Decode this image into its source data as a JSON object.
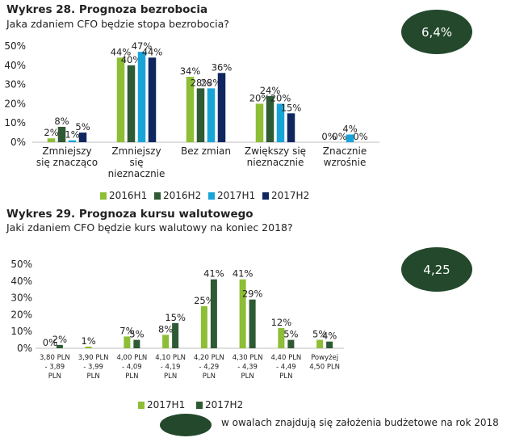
{
  "chart_data": [
    {
      "type": "bar",
      "title": "Wykres 28. Prognoza bezrobocia",
      "subtitle": "Jaka zdaniem CFO będzie stopa bezrobocia?",
      "categories": [
        [
          "Zmniejszy",
          "się znacząco"
        ],
        [
          "Zmniejszy",
          "się",
          "nieznacznie"
        ],
        [
          "Bez zmian"
        ],
        [
          "Zwiększy się",
          "nieznacznie"
        ],
        [
          "Znacznie",
          "wzrośnie"
        ]
      ],
      "ylim": [
        0,
        50
      ],
      "yticks": [
        "0%",
        "10%",
        "20%",
        "30%",
        "40%",
        "50%"
      ],
      "series": [
        {
          "name": "2016H1",
          "color": "#8dbe35",
          "values": [
            2,
            44,
            34,
            20,
            0
          ],
          "labels": [
            "2%",
            "44%",
            "34%",
            "20%",
            "0%"
          ]
        },
        {
          "name": "2016H2",
          "color": "#2e5a34",
          "values": [
            8,
            40,
            28,
            24,
            0
          ],
          "labels": [
            "8%",
            "40%",
            "28%",
            "24%",
            "0%"
          ]
        },
        {
          "name": "2017H1",
          "color": "#19a4d8",
          "values": [
            1,
            47,
            28,
            20,
            4
          ],
          "labels": [
            "1%",
            "47%",
            "28%",
            "20%",
            "4%"
          ]
        },
        {
          "name": "2017H2",
          "color": "#0f2660",
          "values": [
            5,
            44,
            36,
            15,
            0
          ],
          "labels": [
            "5%",
            "44%",
            "36%",
            "15%",
            "0%"
          ]
        }
      ],
      "assumption": "6,4%"
    },
    {
      "type": "bar",
      "title": "Wykres 29. Prognoza kursu walutowego",
      "subtitle": "Jaki zdaniem CFO będzie kurs walutowy na koniec 2018?",
      "categories": [
        [
          "3,80 PLN",
          "- 3,89",
          "PLN"
        ],
        [
          "3,90 PLN",
          "- 3,99",
          "PLN"
        ],
        [
          "4,00 PLN",
          "- 4,09",
          "PLN"
        ],
        [
          "4,10 PLN",
          "- 4,19",
          "PLN"
        ],
        [
          "4,20 PLN",
          "- 4,29",
          "PLN"
        ],
        [
          "4,30 PLN",
          "- 4,39",
          "PLN"
        ],
        [
          "4,40 PLN",
          "- 4,49",
          "PLN"
        ],
        [
          "Powyżej",
          "4,50 PLN"
        ]
      ],
      "ylim": [
        0,
        50
      ],
      "yticks": [
        "0%",
        "10%",
        "20%",
        "30%",
        "40%",
        "50%"
      ],
      "series": [
        {
          "name": "2017H1",
          "color": "#8dbe35",
          "values": [
            0,
            1,
            7,
            8,
            25,
            41,
            12,
            5
          ],
          "labels": [
            "0%",
            "1%",
            "7%",
            "8%",
            "25%",
            "41%",
            "12%",
            "5%"
          ]
        },
        {
          "name": "2017H2",
          "color": "#2e5a34",
          "values": [
            2,
            0,
            5,
            15,
            41,
            29,
            5,
            4
          ],
          "labels": [
            "2%",
            "",
            "5%",
            "15%",
            "41%",
            "29%",
            "5%",
            "4%"
          ]
        }
      ],
      "assumption": "4,25"
    }
  ],
  "legend_note": "w owalach znajdują się założenia budżetowe na rok 2018",
  "colors": {
    "oval": "#23482b",
    "axis": "#bfbfbf"
  }
}
